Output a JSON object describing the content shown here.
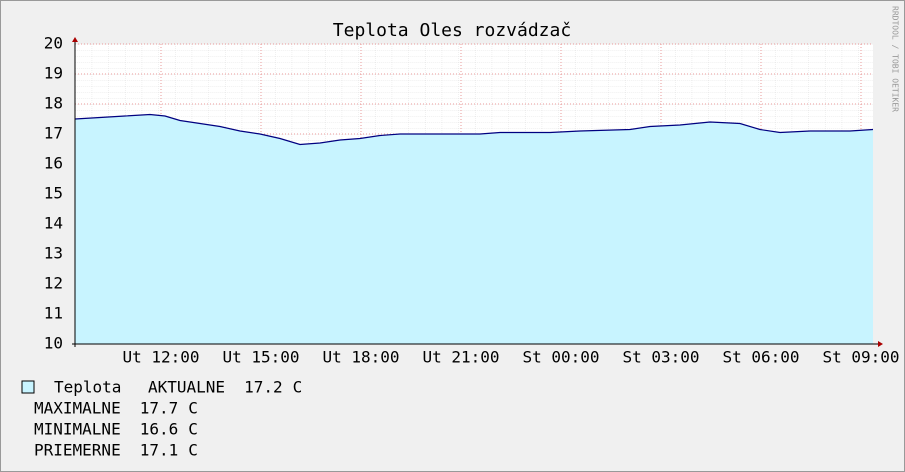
{
  "chart_data": {
    "type": "area",
    "title": "Teplota Oles rozvádzač",
    "watermark": "RRDTOOL / TOBI OETIKER",
    "x": [
      9.42,
      10.17,
      10.92,
      11.67,
      12.12,
      12.57,
      13.17,
      13.77,
      14.37,
      14.97,
      15.57,
      16.17,
      16.77,
      17.37,
      17.97,
      18.57,
      19.17,
      20.67,
      21.57,
      22.17,
      23.67,
      24.57,
      26.07,
      26.67,
      27.57,
      28.47,
      29.37,
      29.97,
      30.57,
      31.47,
      32.67,
      33.36
    ],
    "series": [
      {
        "name": "Teplota",
        "color": "#c8f4ff",
        "line_color": "#000080",
        "values": [
          17.5,
          17.55,
          17.6,
          17.65,
          17.6,
          17.45,
          17.35,
          17.25,
          17.1,
          17.0,
          16.85,
          16.65,
          16.7,
          16.8,
          16.85,
          16.95,
          17.0,
          17.0,
          17.0,
          17.05,
          17.05,
          17.1,
          17.15,
          17.25,
          17.3,
          17.4,
          17.35,
          17.15,
          17.05,
          17.1,
          17.1,
          17.15
        ]
      }
    ],
    "xlim": [
      9.42,
      33.36
    ],
    "xticks": [
      {
        "value": 12,
        "label": "Ut 12:00"
      },
      {
        "value": 15,
        "label": "Ut 15:00"
      },
      {
        "value": 18,
        "label": "Ut 18:00"
      },
      {
        "value": 21,
        "label": "Ut 21:00"
      },
      {
        "value": 24,
        "label": "St 00:00"
      },
      {
        "value": 27,
        "label": "St 03:00"
      },
      {
        "value": 30,
        "label": "St 06:00"
      },
      {
        "value": 33,
        "label": "St 09:00"
      }
    ],
    "ylim": [
      10,
      20
    ],
    "yticks": [
      10,
      11,
      12,
      13,
      14,
      15,
      16,
      17,
      18,
      19,
      20
    ],
    "grid": true,
    "unit": "C",
    "stats": [
      {
        "label": "AKTUALNE",
        "value": 17.2
      },
      {
        "label": "MAXIMALNE",
        "value": 17.7
      },
      {
        "label": "MINIMALNE",
        "value": 16.6
      },
      {
        "label": "PRIEMERNE",
        "value": 17.1
      }
    ]
  }
}
